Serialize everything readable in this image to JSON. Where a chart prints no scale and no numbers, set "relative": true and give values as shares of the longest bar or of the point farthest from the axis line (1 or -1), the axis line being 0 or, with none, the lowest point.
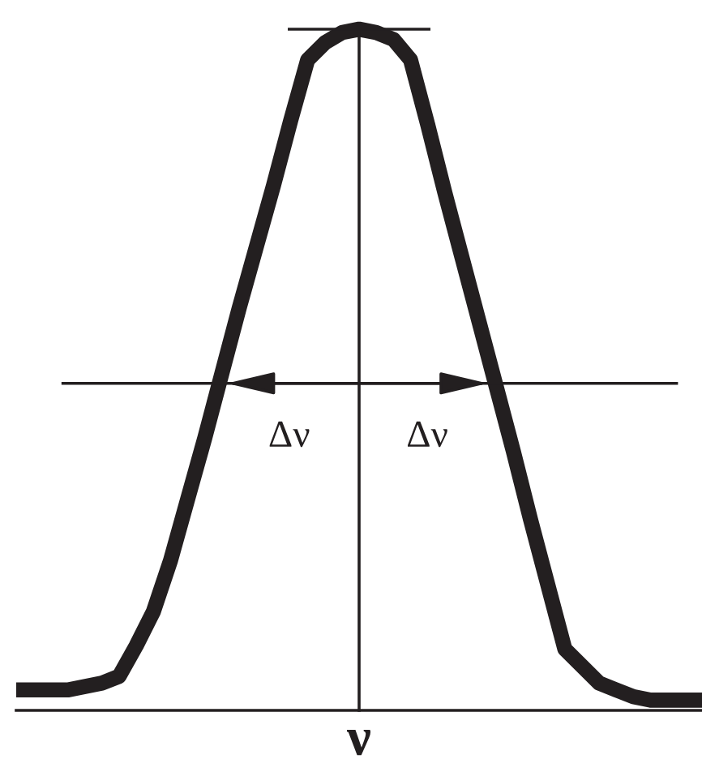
{
  "chart_data": {
    "type": "line",
    "relative": true,
    "xlabel": "ν",
    "categories": [
      null,
      null,
      null,
      null,
      null,
      null,
      null,
      null,
      null,
      null,
      null,
      null,
      null,
      null,
      null,
      null,
      null,
      null,
      null,
      null,
      null,
      null,
      null,
      null,
      null,
      null,
      null,
      null,
      null,
      null,
      null,
      null,
      null,
      null,
      null,
      null,
      null,
      null,
      null,
      null,
      null
    ],
    "series": [
      {
        "color": "#231f20",
        "values": [
          0.03,
          0.03,
          0.03,
          0.03,
          0.035,
          0.04,
          0.05,
          0.095,
          0.145,
          0.22,
          0.31,
          0.4,
          0.495,
          0.59,
          0.68,
          0.77,
          0.865,
          0.955,
          0.98,
          0.995,
          1,
          0.995,
          0.985,
          0.955,
          0.86,
          0.76,
          0.665,
          0.57,
          0.475,
          0.38,
          0.28,
          0.185,
          0.09,
          0.065,
          0.04,
          0.03,
          0.02,
          0.015,
          0.015,
          0.015,
          0.015
        ]
      }
    ],
    "ref_lines": [
      {
        "axis": "y",
        "value": 1,
        "color": "#231f20"
      },
      {
        "axis": "y",
        "value": 0.48,
        "color": "#231f20"
      }
    ],
    "annotations": [
      "Δν",
      "Δν"
    ]
  }
}
